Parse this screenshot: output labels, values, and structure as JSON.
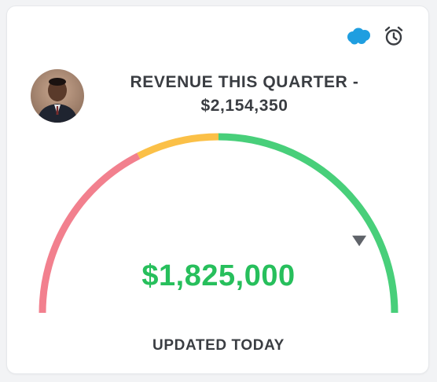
{
  "card": {
    "title_line1": "REVENUE THIS QUARTER -",
    "title_line2": "$2,154,350",
    "current_value": "$1,825,000",
    "footer": "UPDATED TODAY",
    "avatar_icon": "user-avatar-photo",
    "icons": [
      "salesforce-cloud-icon",
      "alarm-clock-icon"
    ]
  },
  "gauge": {
    "target": 2154350,
    "current": 1825000,
    "segments": [
      {
        "name": "low",
        "color": "#f2808e",
        "fraction_end": 0.35
      },
      {
        "name": "mid",
        "color": "#fbc047",
        "fraction_end": 0.5
      },
      {
        "name": "high",
        "color": "#48cf7a",
        "fraction_end": 1.0
      }
    ],
    "indicator_color": "#5f6369"
  },
  "colors": {
    "value_text": "#27bf5c",
    "label_text": "#3a3d42",
    "salesforce_blue": "#1f9ee0"
  }
}
